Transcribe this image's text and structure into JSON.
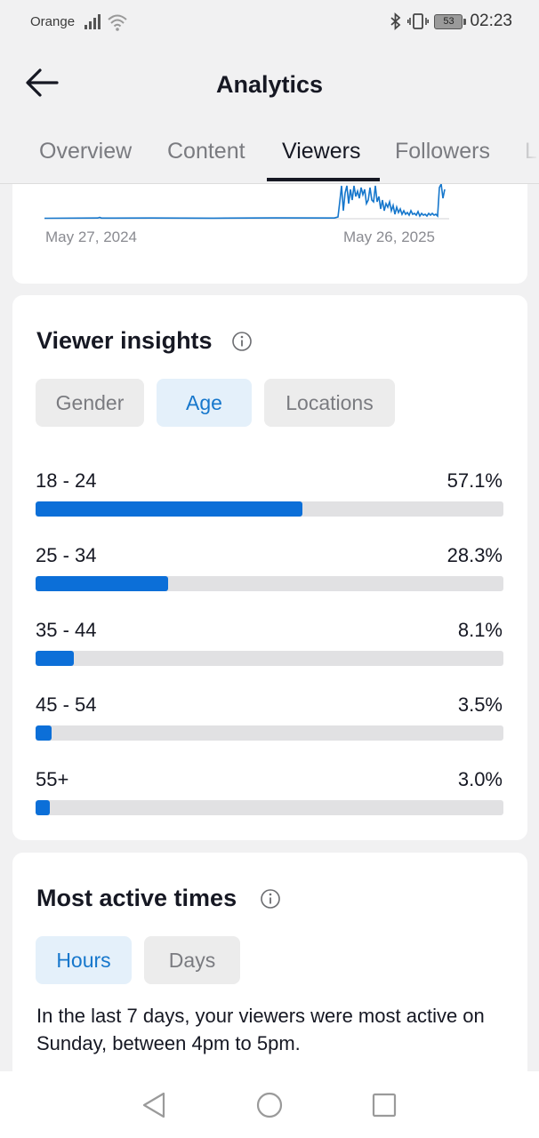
{
  "status_bar": {
    "carrier": "Orange",
    "time": "02:23",
    "battery": "53"
  },
  "header": {
    "title": "Analytics"
  },
  "tabs": [
    "Overview",
    "Content",
    "Viewers",
    "Followers",
    "L"
  ],
  "active_tab": "Viewers",
  "chart": {
    "start_date": "May 27, 2024",
    "end_date": "May 26, 2025"
  },
  "viewer_insights": {
    "title": "Viewer insights",
    "chips": [
      "Gender",
      "Age",
      "Locations"
    ],
    "selected_chip": "Age",
    "rows": [
      {
        "label": "18 - 24",
        "value": "57.1%",
        "fraction": 0.571
      },
      {
        "label": "25 - 34",
        "value": "28.3%",
        "fraction": 0.283
      },
      {
        "label": "35 - 44",
        "value": "8.1%",
        "fraction": 0.081
      },
      {
        "label": "45 - 54",
        "value": "3.5%",
        "fraction": 0.035
      },
      {
        "label": "55+",
        "value": "3.0%",
        "fraction": 0.03
      }
    ]
  },
  "active_times": {
    "title": "Most active times",
    "chips": [
      "Hours",
      "Days"
    ],
    "selected_chip": "Hours",
    "description": "In the last 7 days, your viewers were most active on Sunday, between 4pm to 5pm."
  },
  "colors": {
    "accent": "#0c6fd8",
    "selected_chip_text": "#1677cc",
    "selected_chip_bg": "#e4f0fa"
  },
  "icons": [
    "back-arrow-icon",
    "info-icon",
    "signal-icon",
    "wifi-icon",
    "bluetooth-icon",
    "vibrate-icon",
    "battery-icon",
    "nav-back-icon",
    "nav-home-icon",
    "nav-recents-icon"
  ]
}
